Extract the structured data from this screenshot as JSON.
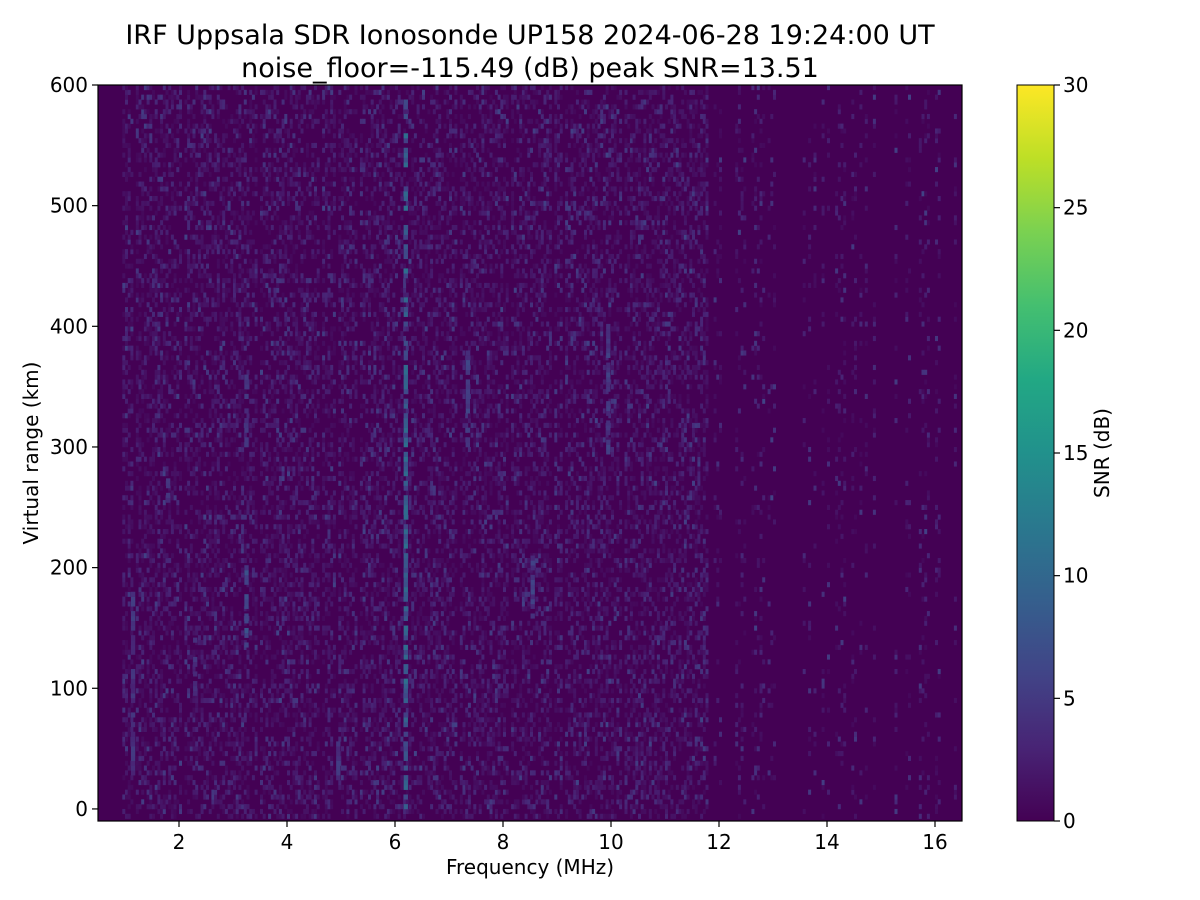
{
  "chart_data": {
    "type": "heatmap",
    "title": "IRF Uppsala SDR Ionosonde UP158 2024-06-28 19:24:00  UT",
    "subtitle": "noise_floor=-115.49 (dB) peak SNR=13.51",
    "xlabel": "Frequency (MHz)",
    "ylabel": "Virtual range (km)",
    "xlim": [
      0.5,
      16.5
    ],
    "ylim": [
      -10,
      600
    ],
    "x_ticks": [
      2,
      4,
      6,
      8,
      10,
      12,
      14,
      16
    ],
    "y_ticks": [
      0,
      100,
      200,
      300,
      400,
      500,
      600
    ],
    "data_x_range": [
      0.5,
      16.4
    ],
    "colorbar": {
      "label": "SNR (dB)",
      "range": [
        0,
        30
      ],
      "ticks": [
        0,
        5,
        10,
        15,
        20,
        25,
        30
      ],
      "colormap": "viridis"
    },
    "grid": false,
    "background_snr": 0,
    "peak_snr": 13.51,
    "features": [
      {
        "x": 6.2,
        "y": [
          0,
          600
        ],
        "snr": 10
      },
      {
        "x": 3.25,
        "y": [
          130,
          200
        ],
        "snr": 8
      },
      {
        "x": 3.25,
        "y": [
          300,
          360
        ],
        "snr": 5
      },
      {
        "x": 7.35,
        "y": [
          300,
          380
        ],
        "snr": 6
      },
      {
        "x": 9.95,
        "y": [
          290,
          400
        ],
        "snr": 6
      },
      {
        "x": 8.55,
        "y": [
          150,
          210
        ],
        "snr": 6
      },
      {
        "x": 2.3,
        "y": [
          90,
          140
        ],
        "snr": 6
      },
      {
        "x": 1.8,
        "y": [
          250,
          280
        ],
        "snr": 5
      },
      {
        "x": 1.15,
        "y": [
          20,
          180
        ],
        "snr": 5
      },
      {
        "x": 4.95,
        "y": [
          20,
          60
        ],
        "snr": 5
      }
    ]
  }
}
